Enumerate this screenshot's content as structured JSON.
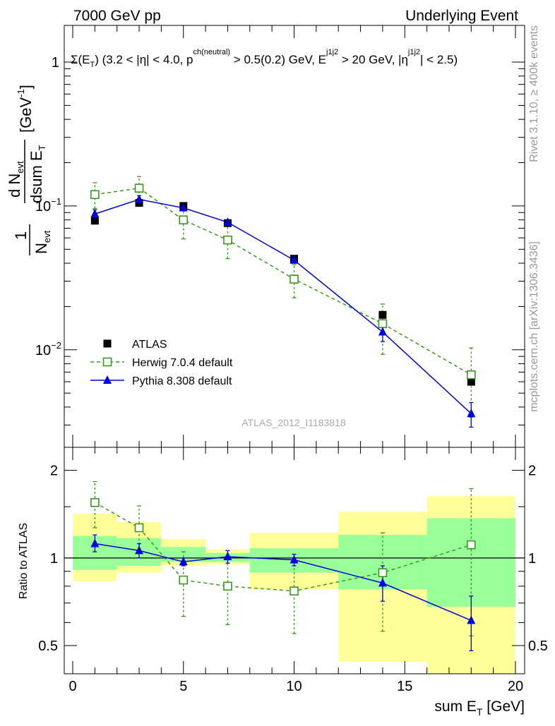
{
  "header": {
    "left": "7000 GeV pp",
    "right": "Underlying Event"
  },
  "side_labels": {
    "rivet": "Rivet 3.1.10, ≥ 400k events",
    "mcplots": "mcplots.cern.ch [arXiv:1306.3436]"
  },
  "watermark": "ATLAS_2012_I1183818",
  "colors": {
    "atlas": "#000000",
    "herwig": "#3a9a1a",
    "pythia": "#0000dd",
    "band_yellow": "#ffff99",
    "band_green": "#99ff99"
  },
  "chart_data": [
    {
      "type": "scatter",
      "panel": "main",
      "title": "Σ(E_T) (3.2 < |η| < 4.0, p_T^ch(neutral) > 0.5(0.2) GeV, E_T^j1j2 > 20 GeV, |η^j1j2| < 2.5)",
      "ylabel": "1/N_evt · d N_evt / dsum E_T [GeV⁻¹]",
      "yscale": "log",
      "xlim": [
        0,
        20
      ],
      "ylim": [
        0.0021,
        1.8
      ],
      "y_ticks": [
        {
          "value": 0.01,
          "label": "10",
          "exp": "−2"
        },
        {
          "value": 0.1,
          "label": "10",
          "exp": "−1"
        },
        {
          "value": 1,
          "label": "1",
          "exp": ""
        }
      ],
      "legend_position": "lower-left",
      "series": [
        {
          "name": "ATLAS",
          "marker": "filled-square",
          "x": [
            1,
            3,
            5,
            7,
            10,
            14,
            18
          ],
          "y": [
            0.079,
            0.105,
            0.1,
            0.076,
            0.043,
            0.0175,
            0.006
          ]
        },
        {
          "name": "Herwig 7.0.4 default",
          "marker": "open-square",
          "line": "dashed",
          "x": [
            1,
            3,
            5,
            7,
            10,
            14,
            18
          ],
          "y": [
            0.12,
            0.133,
            0.08,
            0.058,
            0.031,
            0.0152,
            0.0067
          ],
          "err_low": [
            0.096,
            0.107,
            0.059,
            0.043,
            0.023,
            0.0093,
            0.0034
          ],
          "err_high": [
            0.145,
            0.16,
            0.101,
            0.074,
            0.039,
            0.0208,
            0.0103
          ]
        },
        {
          "name": "Pythia 8.308 default",
          "marker": "filled-triangle",
          "line": "solid",
          "x": [
            1,
            3,
            5,
            7,
            10,
            14,
            18
          ],
          "y": [
            0.088,
            0.111,
            0.097,
            0.077,
            0.042,
            0.0133,
            0.0036
          ],
          "err_low": [
            0.082,
            0.104,
            0.093,
            0.074,
            0.04,
            0.0114,
            0.0029
          ],
          "err_high": [
            0.094,
            0.118,
            0.101,
            0.08,
            0.044,
            0.0152,
            0.0043
          ]
        }
      ]
    },
    {
      "type": "scatter",
      "panel": "ratio",
      "ylabel": "Ratio to ATLAS",
      "xlabel": "sum E_T [GeV]",
      "yscale": "log",
      "xlim": [
        0,
        20
      ],
      "ylim": [
        0.4,
        2.4
      ],
      "y_ticks": [
        {
          "value": 0.5,
          "label": "0.5"
        },
        {
          "value": 1,
          "label": "1"
        },
        {
          "value": 2,
          "label": "2"
        }
      ],
      "x_ticks": [
        0,
        5,
        10,
        15,
        20
      ],
      "bands": {
        "x_edges": [
          0,
          2,
          4,
          6,
          8,
          12,
          16,
          20
        ],
        "yellow_low": [
          0.83,
          0.89,
          0.94,
          0.95,
          0.78,
          0.44,
          0.35
        ],
        "yellow_high": [
          1.42,
          1.33,
          1.16,
          1.07,
          1.22,
          1.44,
          1.63
        ],
        "green_low": [
          0.91,
          0.94,
          0.97,
          0.97,
          0.89,
          0.78,
          0.68
        ],
        "green_high": [
          1.19,
          1.17,
          1.09,
          1.04,
          1.08,
          1.2,
          1.37
        ]
      },
      "series": [
        {
          "name": "Herwig 7.0.4 default",
          "marker": "open-square",
          "line": "dashed",
          "x": [
            1,
            3,
            5,
            7,
            10,
            14,
            18
          ],
          "y": [
            1.55,
            1.27,
            0.84,
            0.8,
            0.77,
            0.89,
            1.11
          ],
          "err_low": [
            1.27,
            1.04,
            0.63,
            0.59,
            0.55,
            0.56,
            0.54
          ],
          "err_high": [
            1.83,
            1.51,
            1.05,
            1.0,
            0.99,
            1.22,
            1.73
          ]
        },
        {
          "name": "Pythia 8.308 default",
          "marker": "filled-triangle",
          "line": "solid",
          "x": [
            1,
            3,
            5,
            7,
            10,
            14,
            18
          ],
          "y": [
            1.12,
            1.06,
            0.97,
            1.01,
            0.985,
            0.82,
            0.61
          ],
          "err_low": [
            1.05,
            1.0,
            0.94,
            0.96,
            0.94,
            0.71,
            0.48
          ],
          "err_high": [
            1.2,
            1.12,
            1.0,
            1.06,
            1.03,
            0.94,
            0.74
          ]
        }
      ]
    }
  ]
}
